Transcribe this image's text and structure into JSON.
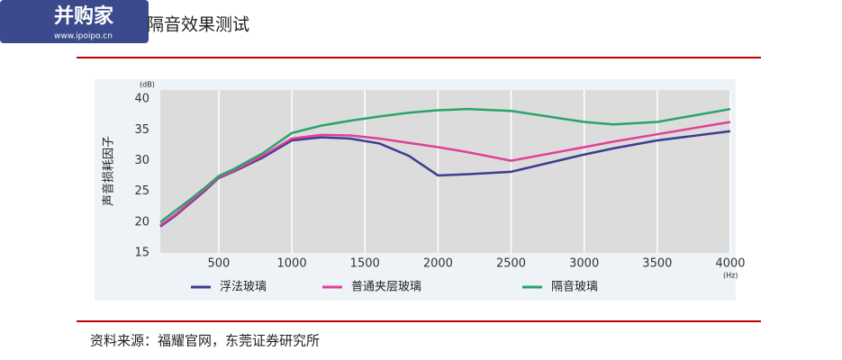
{
  "watermark": {
    "name": "并购家",
    "url": "www.ipoipo.cn"
  },
  "chart_data": {
    "type": "line",
    "title": "隔音效果测试",
    "y_label": "声音损耗因子",
    "y_unit": "(dB)",
    "x_unit": "(Hz)",
    "x": [
      100,
      200,
      300,
      400,
      500,
      600,
      800,
      1000,
      1200,
      1400,
      1600,
      1800,
      2000,
      2200,
      2500,
      3000,
      3200,
      3500,
      4000
    ],
    "series": [
      {
        "name": "浮法玻璃",
        "color": "#3d3d8f",
        "values": [
          19.3,
          21,
          23,
          25,
          27.2,
          28.2,
          30.5,
          33.3,
          33.8,
          33.6,
          32.8,
          30.8,
          27.6,
          27.8,
          28.2,
          31,
          32,
          33.3,
          34.8
        ]
      },
      {
        "name": "普通夹层玻璃",
        "color": "#e0409a",
        "values": [
          19.5,
          21.2,
          23.2,
          25.2,
          27.3,
          28.3,
          30.8,
          33.6,
          34.2,
          34.1,
          33.6,
          32.9,
          32.2,
          31.4,
          30.0,
          32.2,
          33.1,
          34.3,
          36.3
        ]
      },
      {
        "name": "隔音玻璃",
        "color": "#2aa36b",
        "values": [
          20,
          21.8,
          23.6,
          25.5,
          27.5,
          28.6,
          31.2,
          34.5,
          35.7,
          36.5,
          37.2,
          37.8,
          38.2,
          38.4,
          38.1,
          36.3,
          35.9,
          36.3,
          38.4
        ]
      }
    ],
    "xlim": [
      100,
      4000
    ],
    "xticks": [
      500,
      1000,
      1500,
      2000,
      2500,
      3000,
      3500,
      4000
    ],
    "ylim": [
      15,
      41.5
    ],
    "yticks": [
      15,
      20,
      25,
      30,
      35,
      40
    ],
    "grid": true
  },
  "source": "资料来源：福耀官网，东莞证券研究所"
}
